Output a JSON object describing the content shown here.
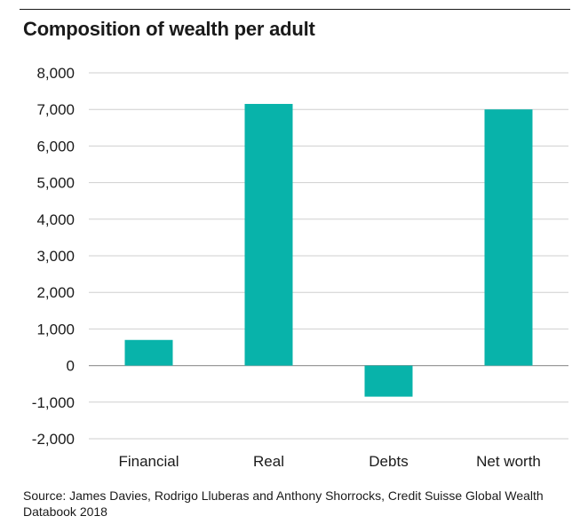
{
  "chart_data": {
    "type": "bar",
    "title": "Composition of wealth per adult",
    "categories": [
      "Financial",
      "Real",
      "Debts",
      "Net worth"
    ],
    "values": [
      700,
      7150,
      -850,
      7000
    ],
    "ylim": [
      -2000,
      8000
    ],
    "yticks": [
      "8,000",
      "7,000",
      "6,000",
      "5,000",
      "4,000",
      "3,000",
      "2,000",
      "1,000",
      "0",
      "-1,000",
      "-2,000"
    ],
    "ytick_values": [
      8000,
      7000,
      6000,
      5000,
      4000,
      3000,
      2000,
      1000,
      0,
      -1000,
      -2000
    ],
    "xlabel": "",
    "ylabel": "",
    "grid": true,
    "bar_color": "#08b3aa",
    "grid_color": "#cfcfcf",
    "source": "Source: James Davies, Rodrigo Lluberas and Anthony Shorrocks, Credit Suisse Global Wealth Databook 2018"
  }
}
